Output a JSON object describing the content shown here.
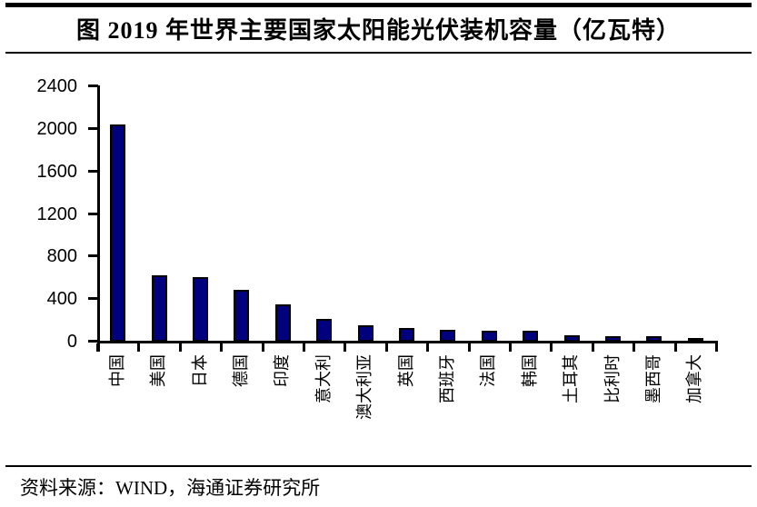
{
  "header": {
    "title": "图 2019 年世界主要国家太阳能光伏装机容量（亿瓦特）"
  },
  "footer": {
    "source_text": "资料来源：WIND，海通证券研究所"
  },
  "colors": {
    "bar_fill": "#00007E",
    "bar_border": "#000000",
    "axis": "#000000",
    "background": "#FFFFFF"
  },
  "chart_data": {
    "type": "bar",
    "title": "图 2019 年世界主要国家太阳能光伏装机容量（亿瓦特）",
    "categories": [
      "中国",
      "美国",
      "日本",
      "德国",
      "印度",
      "意大利",
      "澳大利亚",
      "英国",
      "西班牙",
      "法国",
      "韩国",
      "土耳其",
      "比利时",
      "墨西哥",
      "加拿大"
    ],
    "values": [
      2040,
      620,
      610,
      490,
      350,
      210,
      155,
      130,
      110,
      105,
      100,
      60,
      50,
      48,
      35
    ],
    "xlabel": "",
    "ylabel": "",
    "unit": "亿瓦特",
    "ylim": [
      0,
      2400
    ],
    "yticks": [
      0,
      400,
      800,
      1200,
      1600,
      2000,
      2400
    ],
    "grid": false,
    "legend_position": "none",
    "bar_color": "#00007E",
    "source_label": "资料来源：WIND，海通证券研究所"
  }
}
